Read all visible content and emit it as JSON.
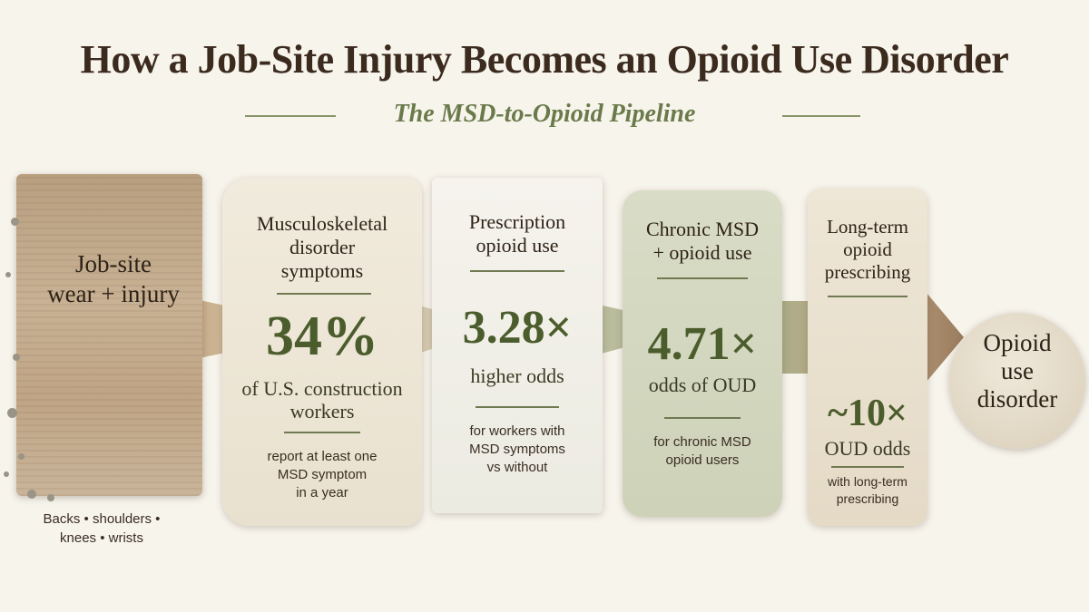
{
  "title": "How a Job-Site Injury Becomes an Opioid Use Disorder",
  "subtitle": "The MSD-to-Opioid Pipeline",
  "start": {
    "label_line1": "Job-site",
    "label_line2": "wear + injury",
    "footnote_line1": "Backs • shoulders •",
    "footnote_line2": "knees • wrists"
  },
  "stages": [
    {
      "head": [
        "Musculoskeletal",
        "disorder",
        "symptoms"
      ],
      "stat": "34%",
      "stat_desc": [
        "of U.S. construction",
        "workers"
      ],
      "note": [
        "report at least one",
        "MSD symptom",
        "in a year"
      ]
    },
    {
      "head": [
        "Prescription",
        "opioid use"
      ],
      "stat": "3.28×",
      "stat_desc": [
        "higher odds"
      ],
      "note": [
        "for workers with",
        "MSD symptoms",
        "vs without"
      ]
    },
    {
      "head": [
        "Chronic MSD",
        "+ opioid use"
      ],
      "stat": "4.71×",
      "stat_desc": [
        "odds of OUD"
      ],
      "note": [
        "for chronic MSD",
        "opioid users"
      ]
    },
    {
      "head": [
        "Long-term",
        "opioid",
        "prescribing"
      ],
      "stat": "~10×",
      "stat_desc": [
        "OUD odds"
      ],
      "note": [
        "with long-term",
        "prescribing"
      ]
    }
  ],
  "end": {
    "label": [
      "Opioid",
      "use",
      "disorder"
    ]
  },
  "colors": {
    "accent_green": "#4b5d2c",
    "title_brown": "#3b2a1e",
    "arrow_tan": "#c7ad8a"
  }
}
